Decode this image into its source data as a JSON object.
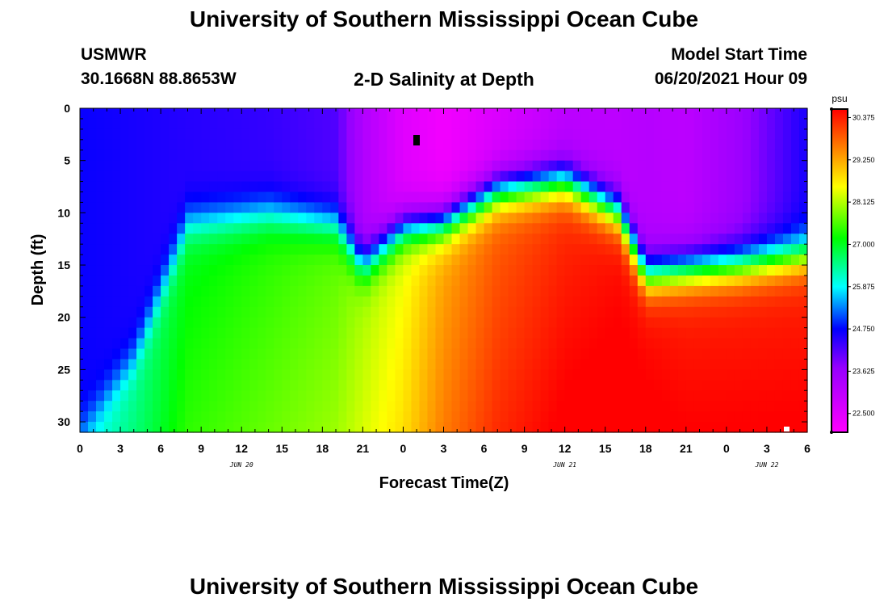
{
  "header": {
    "title_top": "University of Southern Mississippi Ocean Cube",
    "title_bottom": "University of Southern Mississippi Ocean Cube",
    "station": "USMWR",
    "location": "30.1668N  88.8653W",
    "plot_title": "2-D Salinity at Depth",
    "model_label": "Model Start Time",
    "model_time": "06/20/2021 Hour 09"
  },
  "chart_data": {
    "type": "heatmap",
    "title": "2-D Salinity at Depth",
    "xlabel": "Forecast Time(Z)",
    "ylabel": "Depth (ft)",
    "x_range_hours": [
      0,
      54
    ],
    "y_range_ft": [
      0,
      31
    ],
    "x_tick_labels": [
      "0",
      "3",
      "6",
      "9",
      "12",
      "15",
      "18",
      "21",
      "0",
      "3",
      "6",
      "9",
      "12",
      "15",
      "18",
      "21",
      "0",
      "3",
      "6"
    ],
    "y_tick_labels": [
      "0",
      "5",
      "10",
      "15",
      "20",
      "25",
      "30"
    ],
    "y_tick_values": [
      0,
      5,
      10,
      15,
      20,
      25,
      30
    ],
    "date_labels": [
      {
        "text": "JUN 20",
        "hour": 12
      },
      {
        "text": "JUN 21",
        "hour": 36
      },
      {
        "text": "JUN 22",
        "hour": 51
      }
    ],
    "colorbar": {
      "unit": "psu",
      "min": 22.0,
      "max": 30.6,
      "labels": [
        "30.375",
        "29.250",
        "28.125",
        "27.000",
        "25.875",
        "24.750",
        "23.625",
        "22.500"
      ],
      "label_values": [
        30.375,
        29.25,
        28.125,
        27.0,
        25.875,
        24.75,
        23.625,
        22.5
      ]
    },
    "salinity_profiles": [
      {
        "hour": 0,
        "surface": 24.7,
        "halocline_ft": 31,
        "bottom": 25.8
      },
      {
        "hour": 4,
        "surface": 24.6,
        "halocline_ft": 24,
        "bottom": 26.4
      },
      {
        "hour": 8,
        "surface": 24.5,
        "halocline_ft": 11,
        "bottom": 27.0
      },
      {
        "hour": 14,
        "surface": 24.4,
        "halocline_ft": 10,
        "bottom": 27.3
      },
      {
        "hour": 19,
        "surface": 24.2,
        "halocline_ft": 11,
        "bottom": 27.6
      },
      {
        "hour": 21,
        "surface": 23.3,
        "halocline_ft": 15,
        "bottom": 28.0
      },
      {
        "hour": 24,
        "surface": 22.5,
        "halocline_ft": 11.5,
        "bottom": 28.4
      },
      {
        "hour": 27,
        "surface": 22.2,
        "halocline_ft": 11,
        "bottom": 29.2
      },
      {
        "hour": 31,
        "surface": 22.6,
        "halocline_ft": 8,
        "bottom": 29.8
      },
      {
        "hour": 36,
        "surface": 23.1,
        "halocline_ft": 7,
        "bottom": 30.2
      },
      {
        "hour": 40,
        "surface": 23.1,
        "halocline_ft": 10,
        "bottom": 30.4
      },
      {
        "hour": 42,
        "surface": 23.2,
        "halocline_ft": 16,
        "bottom": 30.4
      },
      {
        "hour": 45,
        "surface": 23.1,
        "halocline_ft": 15.5,
        "bottom": 30.3
      },
      {
        "hour": 49,
        "surface": 23.6,
        "halocline_ft": 15,
        "bottom": 30.3
      },
      {
        "hour": 54,
        "surface": 24.6,
        "halocline_ft": 14,
        "bottom": 30.3
      }
    ]
  }
}
